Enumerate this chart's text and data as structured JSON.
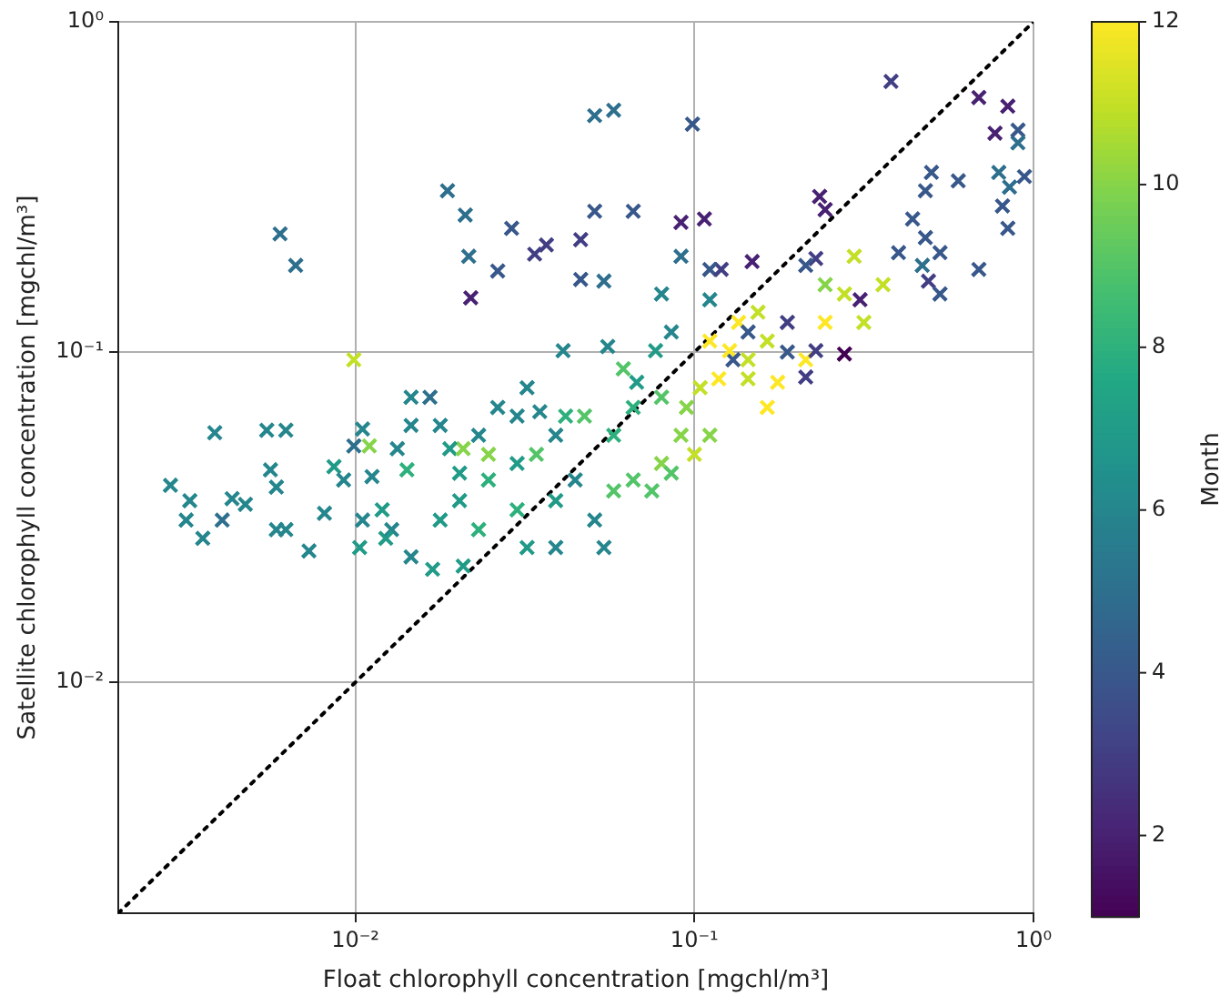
{
  "chart_data": {
    "type": "scatter",
    "xlabel": "Float chlorophyll concentration [mgchl/m³]",
    "ylabel": "Satellite chlorophyll concentration [mgchl/m³]",
    "clabel": "Month",
    "log": "xy",
    "grid": true,
    "xlim": [
      0.002,
      1
    ],
    "ylim": [
      0.002,
      1
    ],
    "xticks": [
      {
        "value": 0.01,
        "label": "10⁻²"
      },
      {
        "value": 0.1,
        "label": "10⁻¹"
      },
      {
        "value": 1,
        "label": "10⁰"
      }
    ],
    "yticks": [
      {
        "value": 0.01,
        "label": "10⁻²"
      },
      {
        "value": 0.1,
        "label": "10⁻¹"
      },
      {
        "value": 1,
        "label": "10⁰"
      }
    ],
    "clim": [
      1,
      12
    ],
    "cticks": [
      2,
      4,
      6,
      8,
      10,
      12
    ],
    "series": [
      {
        "type": "scatter",
        "marker": "cross",
        "colors": [
          "#2e6f8e",
          "#2e6f8e",
          "#2e6f8e",
          "#2e6f8e",
          "#2e6f8e",
          "#482172",
          "#38588b",
          "#38588b",
          "#423e84",
          "#423e84",
          "#423e84",
          "#38588b",
          "#38588b",
          "#38588b",
          "#2e6f8e",
          "#2e6f8e",
          "#38588b",
          "#482172",
          "#482172",
          "#38588b",
          "#423e84",
          "#482172",
          "#423e84",
          "#482172",
          "#482172",
          "#423e84",
          "#482172",
          "#482172",
          "#482172",
          "#38588b",
          "#38588b",
          "#38588b",
          "#38588b",
          "#38588b",
          "#38588b",
          "#38588b",
          "#38588b",
          "#423e84",
          "#440154",
          "#482172",
          "#38588b",
          "#423e84",
          "#25868d",
          "#25868d",
          "#25868d",
          "#25868d",
          "#2e6f8e",
          "#25868d",
          "#25868d",
          "#25868d",
          "#25868d",
          "#25868d",
          "#25868d",
          "#25868d",
          "#25868d",
          "#25868d",
          "#25868d",
          "#25868d",
          "#219b88",
          "#25868d",
          "#2e6f8e",
          "#25868d",
          "#25868d",
          "#219b88",
          "#25868d",
          "#219b88",
          "#25868d",
          "#25868d",
          "#25868d",
          "#25868d",
          "#2e6f8e",
          "#25868d",
          "#219b88",
          "#219b88",
          "#25868d",
          "#25868d",
          "#25868d",
          "#25868d",
          "#25868d",
          "#25868d",
          "#219b88",
          "#2eb07d",
          "#219b88",
          "#219b88",
          "#2eb07d",
          "#2eb07d",
          "#219b88",
          "#25868d",
          "#25868d",
          "#25868d",
          "#25868d",
          "#219b88",
          "#219b88",
          "#25868d",
          "#219b88",
          "#219b88",
          "#c3e026",
          "#86d449",
          "#2eb07d",
          "#86d449",
          "#86d449",
          "#53c468",
          "#2eb07d",
          "#53c468",
          "#2eb07d",
          "#2eb07d",
          "#219b88",
          "#53c468",
          "#219b88",
          "#25868d",
          "#53c468",
          "#86d449",
          "#86d449",
          "#c3e026",
          "#fde725",
          "#fde725",
          "#c3e026",
          "#c3e026",
          "#c3e026",
          "#fde725",
          "#fde725",
          "#fde725",
          "#fde725",
          "#fde725",
          "#86d449",
          "#c3e026",
          "#86d449",
          "#53c468",
          "#53c468",
          "#53c468",
          "#53c468",
          "#25868d",
          "#25868d",
          "#25868d",
          "#25868d",
          "#2e6f8e",
          "#2e6f8e",
          "#38588b",
          "#38588b",
          "#38588b",
          "#423e84",
          "#423e84",
          "#c3e026",
          "#c3e026",
          "#c3e026",
          "#c3e026",
          "#86d449",
          "#c3e026",
          "#fde725",
          "#38588b",
          "#2e6f8e",
          "#38588b",
          "#38588b",
          "#38588b",
          "#2e6f8e",
          "#38588b",
          "#2e6f8e",
          "#2e6f8e"
        ],
        "x": [
          0.006,
          0.00667,
          0.0187,
          0.0211,
          0.0216,
          0.0219,
          0.0263,
          0.0289,
          0.0338,
          0.0366,
          0.0462,
          0.0462,
          0.0508,
          0.066,
          0.0508,
          0.0578,
          0.0987,
          0.0913,
          0.107,
          0.111,
          0.12,
          0.148,
          0.228,
          0.243,
          0.234,
          0.38,
          0.69,
          0.77,
          0.84,
          0.9,
          0.81,
          0.6,
          0.5,
          0.48,
          0.53,
          0.4,
          0.48,
          0.49,
          0.277,
          0.308,
          0.213,
          0.188,
          0.00285,
          0.00325,
          0.00317,
          0.00355,
          0.00405,
          0.00474,
          0.00433,
          0.00385,
          0.00548,
          0.00624,
          0.00562,
          0.00585,
          0.00624,
          0.0073,
          0.00585,
          0.00811,
          0.00865,
          0.00924,
          0.0099,
          0.0105,
          0.0112,
          0.012,
          0.0105,
          0.0103,
          0.0128,
          0.0133,
          0.0146,
          0.0146,
          0.0166,
          0.0178,
          0.019,
          0.0203,
          0.0231,
          0.0263,
          0.03,
          0.0321,
          0.035,
          0.039,
          0.03,
          0.0247,
          0.0203,
          0.0178,
          0.0231,
          0.03,
          0.039,
          0.0445,
          0.0508,
          0.0541,
          0.039,
          0.0321,
          0.0208,
          0.0146,
          0.0123,
          0.0169,
          0.0099,
          0.011,
          0.0142,
          0.0208,
          0.0247,
          0.0342,
          0.0417,
          0.0474,
          0.0578,
          0.066,
          0.0676,
          0.0617,
          0.0768,
          0.0855,
          0.08,
          0.0913,
          0.0948,
          0.104,
          0.118,
          0.127,
          0.144,
          0.164,
          0.154,
          0.135,
          0.111,
          0.164,
          0.213,
          0.243,
          0.111,
          0.1,
          0.08,
          0.066,
          0.0749,
          0.0578,
          0.0855,
          0.041,
          0.0555,
          0.111,
          0.08,
          0.0541,
          0.0913,
          0.144,
          0.13,
          0.188,
          0.213,
          0.228,
          0.316,
          0.277,
          0.36,
          0.296,
          0.243,
          0.144,
          0.176,
          0.44,
          0.47,
          0.53,
          0.69,
          0.84,
          0.79,
          0.94,
          0.9,
          0.85
        ],
        "values": [
          0.228,
          0.183,
          0.308,
          0.26,
          0.195,
          0.146,
          0.176,
          0.237,
          0.198,
          0.211,
          0.219,
          0.166,
          0.267,
          0.267,
          0.52,
          0.54,
          0.49,
          0.247,
          0.253,
          0.178,
          0.178,
          0.188,
          0.192,
          0.27,
          0.296,
          0.66,
          0.59,
          0.46,
          0.555,
          0.47,
          0.277,
          0.33,
          0.35,
          0.222,
          0.2,
          0.2,
          0.308,
          0.164,
          0.0987,
          0.144,
          0.183,
          0.123,
          0.0395,
          0.0355,
          0.031,
          0.0273,
          0.031,
          0.0346,
          0.036,
          0.057,
          0.058,
          0.058,
          0.044,
          0.039,
          0.029,
          0.025,
          0.029,
          0.0325,
          0.045,
          0.041,
          0.052,
          0.0585,
          0.042,
          0.0333,
          0.031,
          0.0256,
          0.029,
          0.051,
          0.06,
          0.073,
          0.073,
          0.06,
          0.051,
          0.043,
          0.056,
          0.068,
          0.064,
          0.078,
          0.066,
          0.056,
          0.046,
          0.041,
          0.0355,
          0.031,
          0.029,
          0.0333,
          0.0355,
          0.041,
          0.031,
          0.0256,
          0.0256,
          0.0256,
          0.0225,
          0.024,
          0.0273,
          0.022,
          0.0948,
          0.052,
          0.044,
          0.051,
          0.049,
          0.049,
          0.064,
          0.064,
          0.056,
          0.068,
          0.081,
          0.089,
          0.101,
          0.115,
          0.073,
          0.056,
          0.068,
          0.078,
          0.083,
          0.101,
          0.083,
          0.108,
          0.132,
          0.123,
          0.108,
          0.068,
          0.0948,
          0.123,
          0.056,
          0.049,
          0.046,
          0.041,
          0.038,
          0.038,
          0.043,
          0.101,
          0.104,
          0.144,
          0.15,
          0.164,
          0.195,
          0.115,
          0.0948,
          0.1,
          0.084,
          0.101,
          0.123,
          0.15,
          0.16,
          0.195,
          0.16,
          0.0948,
          0.081,
          0.253,
          0.183,
          0.15,
          0.178,
          0.237,
          0.35,
          0.34,
          0.43,
          0.316
        ],
        "cvalues": [
          5,
          5,
          5,
          5,
          5,
          2,
          4,
          4,
          3,
          3,
          3,
          4,
          4,
          4,
          5,
          5,
          4,
          2,
          2,
          4,
          3,
          2,
          3,
          2,
          2,
          3,
          2,
          2,
          2,
          4,
          4,
          4,
          4,
          4,
          4,
          4,
          4,
          3,
          1,
          2,
          4,
          3,
          6,
          6,
          6,
          6,
          5,
          6,
          6,
          6,
          6,
          6,
          6,
          6,
          6,
          6,
          6,
          6,
          7,
          6,
          5,
          6,
          6,
          7,
          6,
          7,
          6,
          6,
          6,
          6,
          5,
          6,
          7,
          7,
          6,
          6,
          6,
          6,
          6,
          6,
          7,
          8,
          7,
          7,
          8,
          8,
          7,
          6,
          6,
          6,
          6,
          7,
          7,
          6,
          7,
          7,
          11,
          10,
          8,
          10,
          10,
          9,
          8,
          9,
          8,
          8,
          7,
          9,
          7,
          6,
          9,
          10,
          10,
          11,
          12,
          12,
          11,
          11,
          11,
          12,
          12,
          12,
          12,
          12,
          10,
          11,
          10,
          9,
          9,
          9,
          9,
          6,
          6,
          6,
          6,
          5,
          5,
          4,
          4,
          4,
          3,
          3,
          11,
          11,
          11,
          11,
          10,
          11,
          12,
          4,
          5,
          4,
          4,
          4,
          5,
          4,
          5,
          5
        ]
      },
      {
        "type": "line",
        "x": [
          0.002,
          1
        ],
        "values": [
          0.002,
          1
        ],
        "color": "#000000",
        "line_style": "dotted"
      }
    ]
  }
}
